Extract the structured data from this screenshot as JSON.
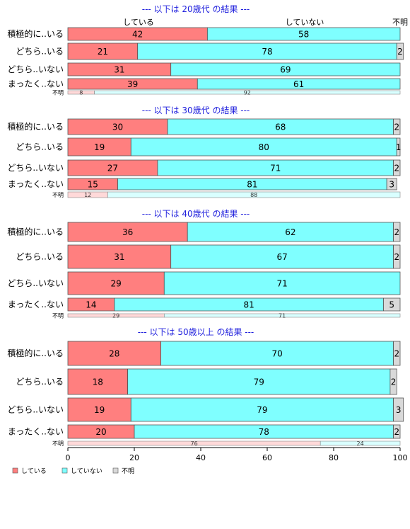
{
  "legend": [
    {
      "key": "shiteiru",
      "label": "している",
      "color": "#ff7f7f"
    },
    {
      "key": "shiteinai",
      "label": "していない",
      "color": "#7fffff"
    },
    {
      "key": "fumei",
      "label": "不明",
      "color": "#d9d9d9"
    }
  ],
  "column_headers": {
    "shiteiru": "している",
    "shiteinai": "していない",
    "fumei": "不明"
  },
  "x_ticks": [
    "0",
    "20",
    "40",
    "60",
    "80",
    "100"
  ],
  "chart_data": [
    {
      "type": "bar",
      "title": "--- 以下は 20歳代 の結果 ---",
      "categories": [
        "積極的に..いる",
        "どちら..いる",
        "どちら..いない",
        "まったく..ない"
      ],
      "series": [
        {
          "name": "している",
          "values": [
            42,
            21,
            31,
            39
          ]
        },
        {
          "name": "していない",
          "values": [
            58,
            78,
            69,
            61
          ]
        },
        {
          "name": "不明",
          "values": [
            0,
            2,
            0,
            0
          ]
        }
      ],
      "fumei_row": {
        "label": "不明",
        "values": [
          8,
          92
        ]
      },
      "xlim": [
        0,
        100
      ]
    },
    {
      "type": "bar",
      "title": "--- 以下は 30歳代 の結果 ---",
      "categories": [
        "積極的に..いる",
        "どちら..いる",
        "どちら..いない",
        "まったく..ない"
      ],
      "series": [
        {
          "name": "している",
          "values": [
            30,
            19,
            27,
            15
          ]
        },
        {
          "name": "していない",
          "values": [
            68,
            80,
            71,
            81
          ]
        },
        {
          "name": "不明",
          "values": [
            2,
            1,
            2,
            3
          ]
        }
      ],
      "fumei_row": {
        "label": "不明",
        "values": [
          12,
          88
        ]
      },
      "xlim": [
        0,
        100
      ]
    },
    {
      "type": "bar",
      "title": "--- 以下は 40歳代 の結果 ---",
      "categories": [
        "積極的に..いる",
        "どちら..いる",
        "どちら..いない",
        "まったく..ない"
      ],
      "series": [
        {
          "name": "している",
          "values": [
            36,
            31,
            29,
            14
          ]
        },
        {
          "name": "していない",
          "values": [
            62,
            67,
            71,
            81
          ]
        },
        {
          "name": "不明",
          "values": [
            2,
            2,
            0,
            5
          ]
        }
      ],
      "fumei_row": {
        "label": "不明",
        "values": [
          29,
          71
        ]
      },
      "xlim": [
        0,
        100
      ]
    },
    {
      "type": "bar",
      "title": "--- 以下は 50歳以上 の結果 ---",
      "categories": [
        "積極的に..いる",
        "どちら..いる",
        "どちら..いない",
        "まったく..ない"
      ],
      "series": [
        {
          "name": "している",
          "values": [
            28,
            18,
            19,
            20
          ]
        },
        {
          "name": "していない",
          "values": [
            70,
            79,
            79,
            78
          ]
        },
        {
          "name": "不明",
          "values": [
            2,
            2,
            3,
            2
          ]
        }
      ],
      "fumei_row": {
        "label": "不明",
        "values": [
          76,
          24
        ]
      },
      "xlim": [
        0,
        100
      ]
    }
  ]
}
